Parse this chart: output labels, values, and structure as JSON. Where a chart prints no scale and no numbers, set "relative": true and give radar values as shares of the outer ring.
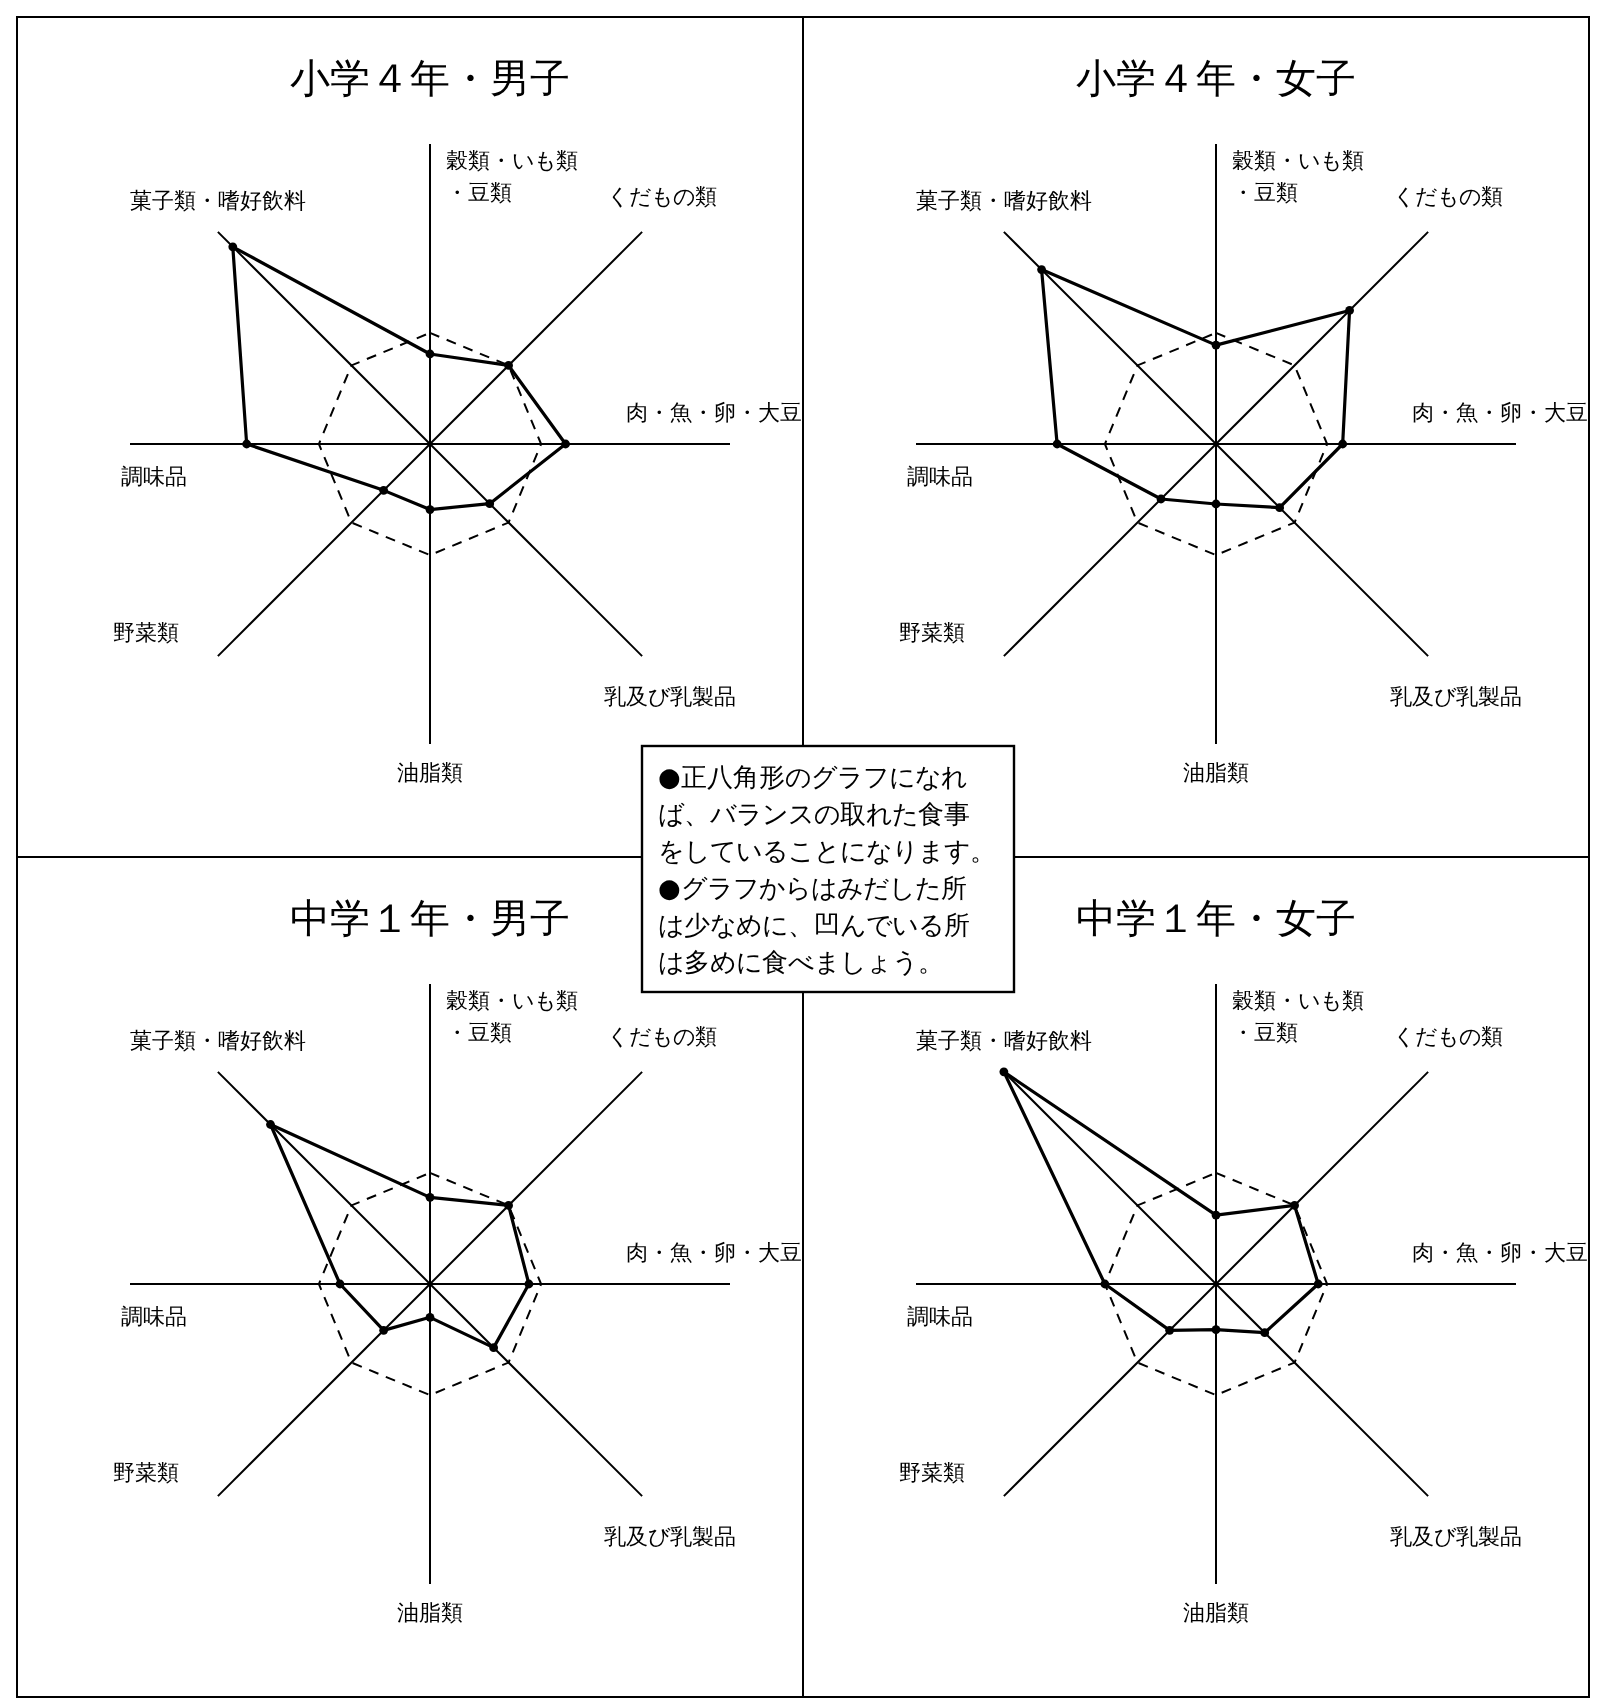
{
  "chart_data": [
    {
      "type": "radar",
      "title": "小学４年・男子",
      "categories": [
        "穀類・いも類・豆類",
        "くだもの類",
        "肉・魚・卵・大豆",
        "乳及び乳製品",
        "油脂類",
        "野菜類",
        "調味品",
        "菓子類・嗜好飲料"
      ],
      "relative": true,
      "marker": "circle",
      "line_style": "solid",
      "series": [
        {
          "color": "#000000",
          "values": [
            0.81,
            1.0,
            1.22,
            0.76,
            0.59,
            0.59,
            1.65,
            2.51
          ]
        }
      ],
      "annotations": [
        "●正八角形のグラフになれば、バランスの取れた食事をしていることになります。",
        "●グラフからはみだした所は少なめに、凹んでいる所は多めに食べましょう。"
      ]
    },
    {
      "type": "radar",
      "title": "小学４年・女子",
      "categories": [
        "穀類・いも類・豆類",
        "くだもの類",
        "肉・魚・卵・大豆",
        "乳及び乳製品",
        "油脂類",
        "野菜類",
        "調味品",
        "菓子類・嗜好飲料"
      ],
      "relative": true,
      "marker": "circle",
      "line_style": "solid",
      "series": [
        {
          "color": "#000000",
          "values": [
            0.89,
            1.7,
            1.14,
            0.81,
            0.54,
            0.7,
            1.43,
            2.22
          ]
        }
      ]
    },
    {
      "type": "radar",
      "title": "中学１年・男子",
      "categories": [
        "穀類・いも類・豆類",
        "くだもの類",
        "肉・魚・卵・大豆",
        "乳及び乳製品",
        "油脂類",
        "野菜類",
        "調味品",
        "菓子類・嗜好飲料"
      ],
      "relative": true,
      "marker": "circle",
      "line_style": "solid",
      "series": [
        {
          "color": "#000000",
          "values": [
            0.78,
            1.0,
            0.89,
            0.81,
            0.3,
            0.59,
            0.81,
            2.03
          ]
        }
      ]
    },
    {
      "type": "radar",
      "title": "中学１年・女子",
      "categories": [
        "穀類・いも類・豆類",
        "くだもの類",
        "肉・魚・卵・大豆",
        "乳及び乳製品",
        "油脂類",
        "野菜類",
        "調味品",
        "菓子類・嗜好飲料"
      ],
      "relative": true,
      "marker": "circle",
      "line_style": "solid",
      "series": [
        {
          "color": "#000000",
          "values": [
            0.62,
            1.0,
            0.92,
            0.62,
            0.41,
            0.59,
            1.0,
            2.7
          ]
        }
      ]
    }
  ]
}
